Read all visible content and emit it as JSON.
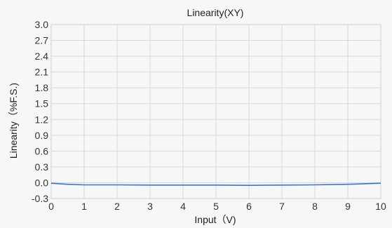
{
  "chart_data": {
    "type": "line",
    "title": "Linearity(XY)",
    "xlabel": "Input（V)",
    "ylabel": "Linearity（%F.S.)",
    "xlim": [
      0,
      10
    ],
    "ylim": [
      -0.3,
      3.0
    ],
    "x_ticks": [
      "0",
      "1",
      "2",
      "3",
      "4",
      "5",
      "6",
      "7",
      "8",
      "9",
      "10"
    ],
    "y_ticks": [
      "-0.3",
      "0.0",
      "0.3",
      "0.6",
      "0.9",
      "1.2",
      "1.5",
      "1.8",
      "2.1",
      "2.4",
      "2.7",
      "3.0"
    ],
    "grid": true,
    "series": [
      {
        "color": "#4472c4",
        "x": [
          0,
          0.5,
          1,
          2,
          3,
          4,
          5,
          6,
          7,
          8,
          9,
          10
        ],
        "y": [
          -0.01,
          -0.03,
          -0.04,
          -0.04,
          -0.045,
          -0.045,
          -0.045,
          -0.05,
          -0.045,
          -0.04,
          -0.03,
          -0.01
        ]
      }
    ]
  }
}
